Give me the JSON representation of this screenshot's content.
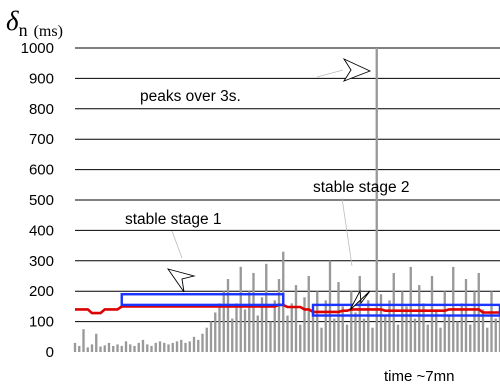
{
  "chart_data": {
    "type": "line",
    "ylabel": {
      "symbol": "δ",
      "subscript": "n",
      "unit": "(ms)"
    },
    "xlabel": "time ~7mn",
    "ylim": [
      0,
      1000
    ],
    "yticks": [
      "1000",
      "900",
      "800",
      "700",
      "600",
      "500",
      "400",
      "300",
      "200",
      "100",
      "0"
    ],
    "grid": true,
    "colors": {
      "raw": "#999999",
      "smoothed": "#dd0000",
      "stage_box": "#1a33ff",
      "grid": "#000000"
    },
    "raw_series": {
      "x": [
        0,
        1,
        2,
        3,
        4,
        5,
        6,
        7,
        8,
        9,
        10,
        11,
        12,
        13,
        14,
        15,
        16,
        17,
        18,
        19,
        20,
        21,
        22,
        23,
        24,
        25,
        26,
        27,
        28,
        29,
        30,
        31,
        32,
        33,
        34,
        35,
        36,
        37,
        38,
        39,
        40,
        41,
        42,
        43,
        44,
        45,
        46,
        47,
        48,
        49,
        50,
        51,
        52,
        53,
        54,
        55,
        56,
        57,
        58,
        59,
        60,
        61,
        62,
        63,
        64,
        65,
        66,
        67,
        68,
        69,
        70,
        71,
        72,
        73,
        74,
        75,
        76,
        77,
        78,
        79,
        80,
        81,
        82,
        83,
        84,
        85,
        86,
        87,
        88,
        89,
        90,
        91,
        92,
        93,
        94,
        95,
        96,
        97,
        98,
        99,
        100
      ],
      "y": [
        30,
        20,
        75,
        15,
        25,
        60,
        18,
        22,
        30,
        20,
        25,
        20,
        35,
        25,
        20,
        30,
        40,
        25,
        20,
        30,
        35,
        30,
        25,
        30,
        35,
        40,
        30,
        35,
        50,
        40,
        60,
        80,
        100,
        130,
        160,
        200,
        240,
        110,
        160,
        280,
        140,
        200,
        260,
        120,
        180,
        290,
        100,
        170,
        240,
        330,
        120,
        160,
        220,
        90,
        180,
        250,
        130,
        200,
        80,
        170,
        300,
        110,
        230,
        150,
        90,
        200,
        130,
        250,
        110,
        170,
        80,
        1000,
        190,
        120,
        170,
        260,
        90,
        200,
        150,
        280,
        110,
        220,
        160,
        90,
        250,
        140,
        80,
        200,
        120,
        280,
        100,
        160,
        240,
        90,
        200,
        260,
        140,
        80,
        200,
        110,
        150
      ]
    },
    "smoothed_series": {
      "x": [
        0,
        3,
        4,
        6,
        7,
        10,
        11,
        47,
        48,
        49,
        50,
        53,
        54,
        55,
        56,
        62,
        63,
        64,
        65,
        72,
        73,
        87,
        88,
        95,
        96,
        100
      ],
      "y": [
        140,
        140,
        128,
        128,
        140,
        140,
        150,
        150,
        155,
        155,
        148,
        148,
        140,
        140,
        132,
        132,
        136,
        136,
        140,
        140,
        136,
        136,
        140,
        140,
        130,
        130
      ]
    },
    "stage_boxes": [
      {
        "label": "stable stage 1",
        "x": [
          11,
          49
        ],
        "y": [
          155,
          190
        ]
      },
      {
        "label": "stable stage 2",
        "x": [
          56,
          100
        ],
        "y": [
          120,
          155
        ]
      }
    ],
    "annotations": [
      {
        "text": "peaks over 3s.",
        "target_x": 71,
        "target_y": 1000
      },
      {
        "text": "stable stage 1",
        "target_x": 24,
        "target_y": 160
      },
      {
        "text": "stable stage 2",
        "target_x": 62,
        "target_y": 150
      }
    ]
  }
}
